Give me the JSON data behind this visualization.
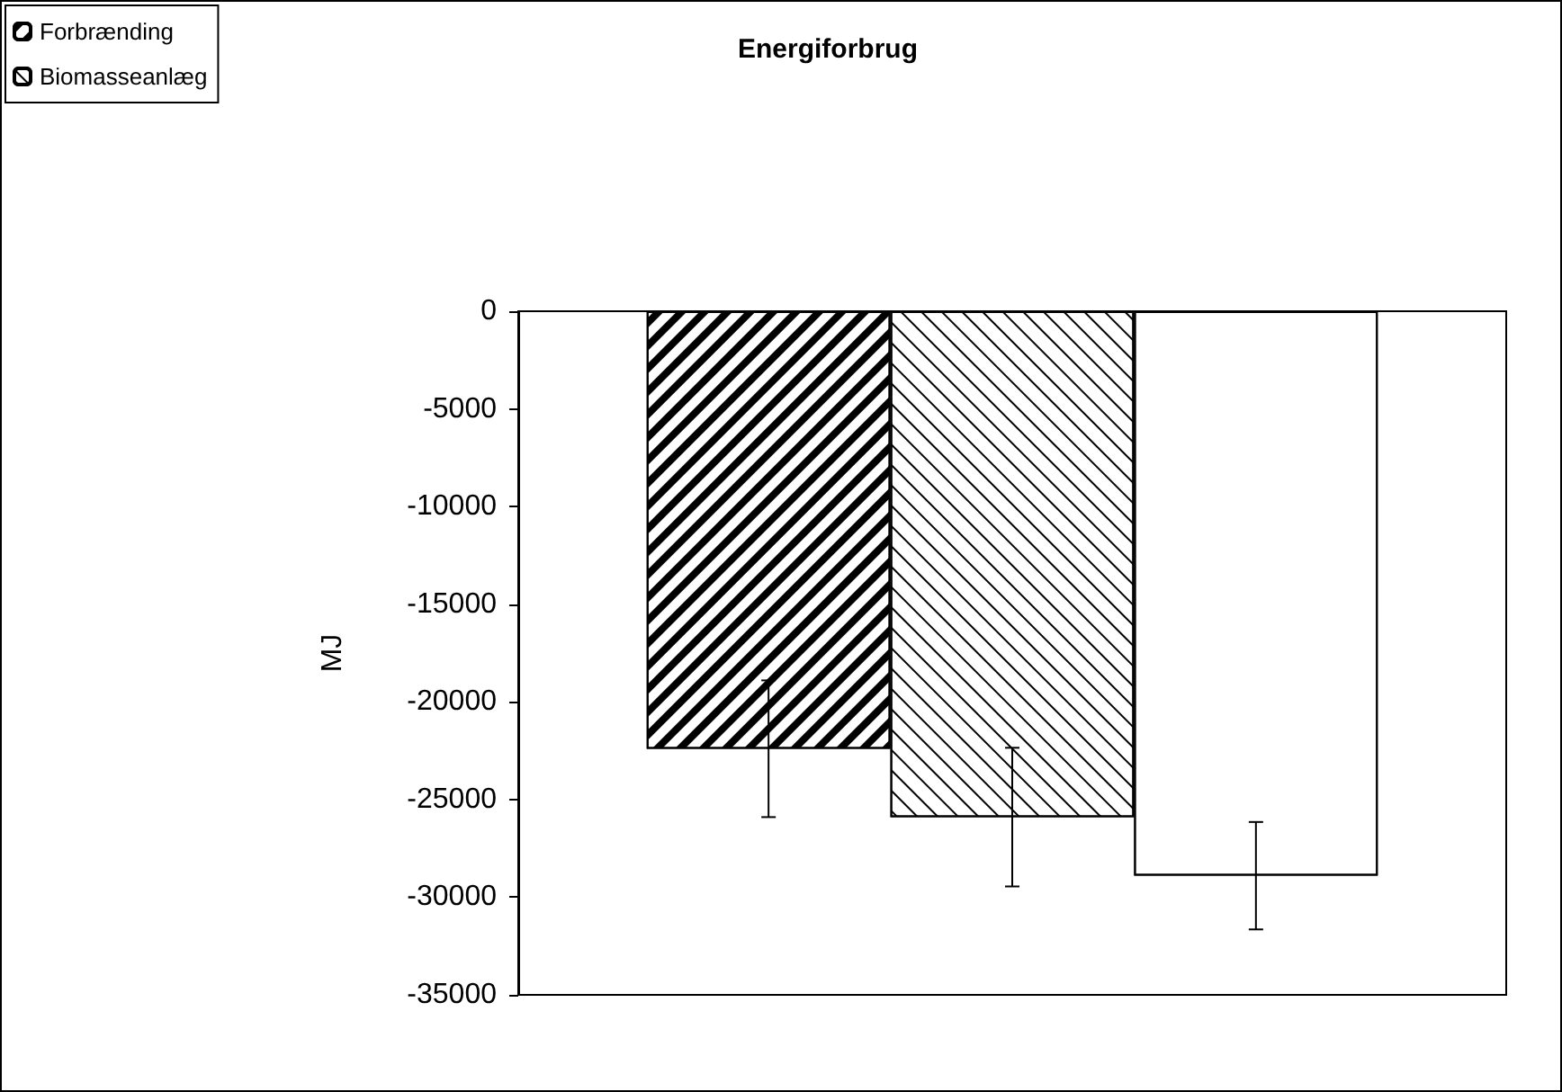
{
  "chart_data": {
    "type": "bar",
    "title": "Energiforbrug",
    "ylabel": "MJ",
    "categories": [
      null
    ],
    "series": [
      {
        "name": "Forbrænding",
        "color": "#000000",
        "values": [
          -22400
        ],
        "errors": [
          3500
        ]
      },
      {
        "name": "Biomasseanlæg",
        "color": "#000000",
        "values": [
          -25900
        ],
        "errors": [
          3550
        ]
      },
      {
        "color": "#000000",
        "values": [
          -28900
        ],
        "errors": [
          2750
        ]
      }
    ],
    "ylim": [
      -35000,
      0
    ],
    "yticks": [
      -35000,
      -30000,
      -25000,
      -20000,
      -15000,
      -10000,
      -5000,
      0
    ],
    "grid": false,
    "legend": "top left"
  }
}
